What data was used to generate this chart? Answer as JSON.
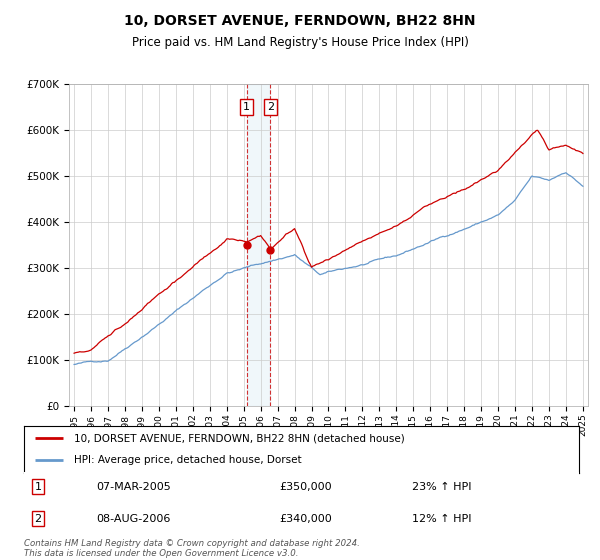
{
  "title": "10, DORSET AVENUE, FERNDOWN, BH22 8HN",
  "subtitle": "Price paid vs. HM Land Registry's House Price Index (HPI)",
  "legend_line1": "10, DORSET AVENUE, FERNDOWN, BH22 8HN (detached house)",
  "legend_line2": "HPI: Average price, detached house, Dorset",
  "footer": "Contains HM Land Registry data © Crown copyright and database right 2024.\nThis data is licensed under the Open Government Licence v3.0.",
  "sale1_date": "07-MAR-2005",
  "sale1_price": 350000,
  "sale1_pct": "23%",
  "sale2_date": "08-AUG-2006",
  "sale2_price": 340000,
  "sale2_pct": "12%",
  "sale1_x": 2005.17,
  "sale2_x": 2006.58,
  "red_color": "#cc0000",
  "blue_color": "#6699cc",
  "vline_color": "#cc0000",
  "grid_color": "#cccccc",
  "background_color": "#ffffff",
  "ylim": [
    0,
    700000
  ],
  "xlim": [
    1994.7,
    2025.3
  ],
  "yticks": [
    0,
    100000,
    200000,
    300000,
    400000,
    500000,
    600000,
    700000
  ]
}
